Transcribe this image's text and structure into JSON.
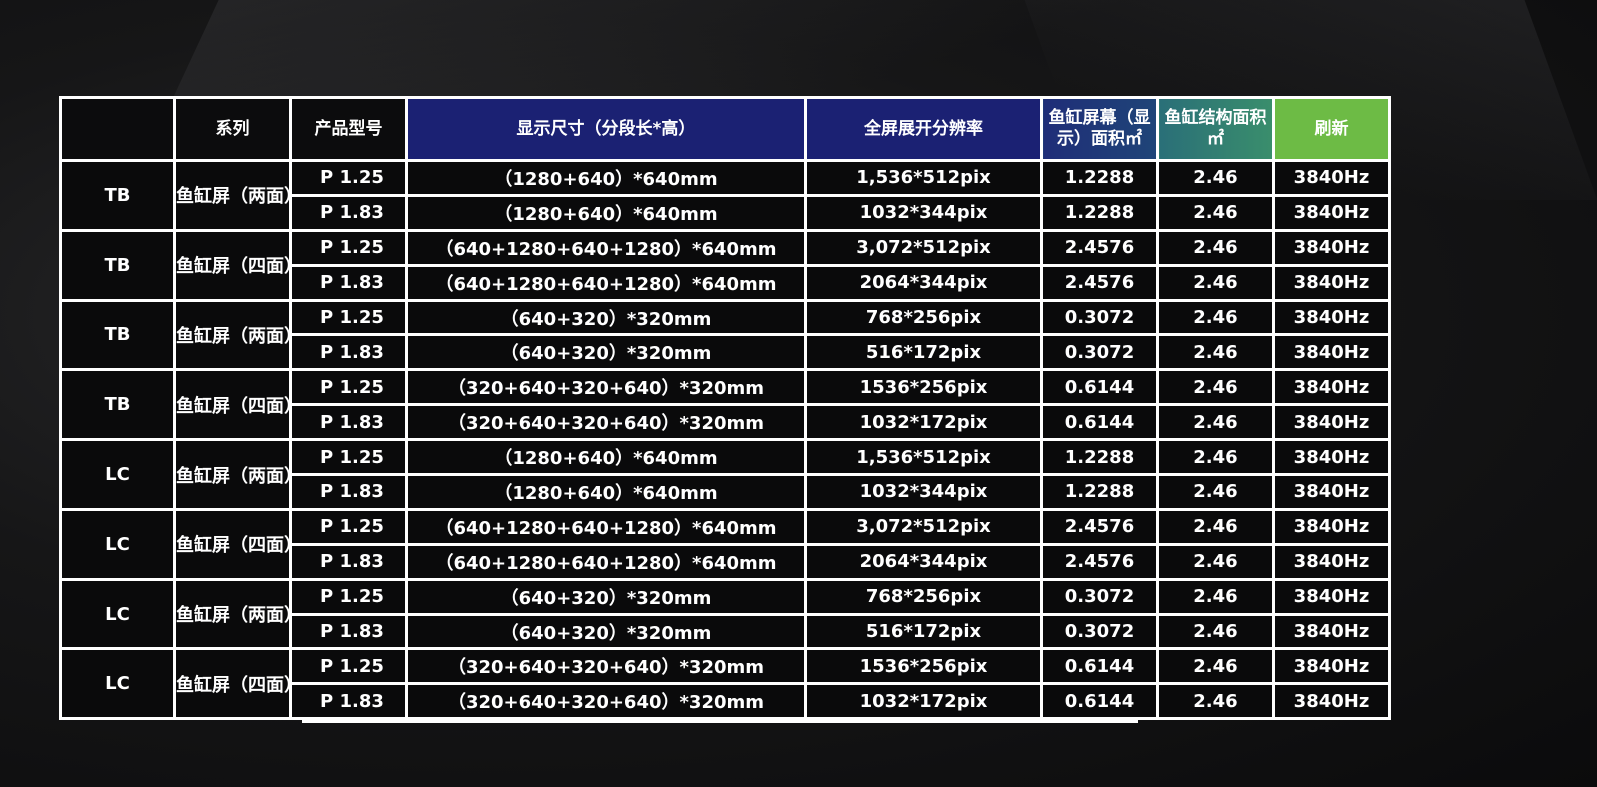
{
  "table": {
    "headers": {
      "series": "系列",
      "model": "产品型号",
      "size": "显示尺寸（分段长*高）",
      "resolution": "全屏展开分辨率",
      "screen_area": "鱼缸屏幕（显示）面积㎡",
      "structure_area": "鱼缸结构面积㎡",
      "refresh": "刷新"
    },
    "groups": [
      {
        "code": "TB",
        "series": "鱼缸屏（两面）",
        "rows": [
          {
            "model": "P 1.25",
            "size": "（1280+640）*640mm",
            "resolution": "1,536*512pix",
            "screen_area": "1.2288",
            "structure_area": "2.46",
            "refresh": "3840Hz"
          },
          {
            "model": "P 1.83",
            "size": "（1280+640）*640mm",
            "resolution": "1032*344pix",
            "screen_area": "1.2288",
            "structure_area": "2.46",
            "refresh": "3840Hz"
          }
        ]
      },
      {
        "code": "TB",
        "series": "鱼缸屏（四面）",
        "rows": [
          {
            "model": "P 1.25",
            "size": "（640+1280+640+1280）*640mm",
            "resolution": "3,072*512pix",
            "screen_area": "2.4576",
            "structure_area": "2.46",
            "refresh": "3840Hz"
          },
          {
            "model": "P 1.83",
            "size": "（640+1280+640+1280）*640mm",
            "resolution": "2064*344pix",
            "screen_area": "2.4576",
            "structure_area": "2.46",
            "refresh": "3840Hz"
          }
        ]
      },
      {
        "code": "TB",
        "series": "鱼缸屏（两面）",
        "rows": [
          {
            "model": "P 1.25",
            "size": "（640+320）*320mm",
            "resolution": "768*256pix",
            "screen_area": "0.3072",
            "structure_area": "2.46",
            "refresh": "3840Hz"
          },
          {
            "model": "P 1.83",
            "size": "（640+320）*320mm",
            "resolution": "516*172pix",
            "screen_area": "0.3072",
            "structure_area": "2.46",
            "refresh": "3840Hz"
          }
        ]
      },
      {
        "code": "TB",
        "series": "鱼缸屏（四面）",
        "rows": [
          {
            "model": "P 1.25",
            "size": "（320+640+320+640）*320mm",
            "resolution": "1536*256pix",
            "screen_area": "0.6144",
            "structure_area": "2.46",
            "refresh": "3840Hz"
          },
          {
            "model": "P 1.83",
            "size": "（320+640+320+640）*320mm",
            "resolution": "1032*172pix",
            "screen_area": "0.6144",
            "structure_area": "2.46",
            "refresh": "3840Hz"
          }
        ]
      },
      {
        "code": "LC",
        "series": "鱼缸屏（两面）",
        "rows": [
          {
            "model": "P 1.25",
            "size": "（1280+640）*640mm",
            "resolution": "1,536*512pix",
            "screen_area": "1.2288",
            "structure_area": "2.46",
            "refresh": "3840Hz"
          },
          {
            "model": "P 1.83",
            "size": "（1280+640）*640mm",
            "resolution": "1032*344pix",
            "screen_area": "1.2288",
            "structure_area": "2.46",
            "refresh": "3840Hz"
          }
        ]
      },
      {
        "code": "LC",
        "series": "鱼缸屏（四面）",
        "rows": [
          {
            "model": "P 1.25",
            "size": "（640+1280+640+1280）*640mm",
            "resolution": "3,072*512pix",
            "screen_area": "2.4576",
            "structure_area": "2.46",
            "refresh": "3840Hz"
          },
          {
            "model": "P 1.83",
            "size": "（640+1280+640+1280）*640mm",
            "resolution": "2064*344pix",
            "screen_area": "2.4576",
            "structure_area": "2.46",
            "refresh": "3840Hz"
          }
        ]
      },
      {
        "code": "LC",
        "series": "鱼缸屏（两面）",
        "rows": [
          {
            "model": "P 1.25",
            "size": "（640+320）*320mm",
            "resolution": "768*256pix",
            "screen_area": "0.3072",
            "structure_area": "2.46",
            "refresh": "3840Hz"
          },
          {
            "model": "P 1.83",
            "size": "（640+320）*320mm",
            "resolution": "516*172pix",
            "screen_area": "0.3072",
            "structure_area": "2.46",
            "refresh": "3840Hz"
          }
        ]
      },
      {
        "code": "LC",
        "series": "鱼缸屏（四面）",
        "rows": [
          {
            "model": "P 1.25",
            "size": "（320+640+320+640）*320mm",
            "resolution": "1536*256pix",
            "screen_area": "0.6144",
            "structure_area": "2.46",
            "refresh": "3840Hz"
          },
          {
            "model": "P 1.83",
            "size": "（320+640+320+640）*320mm",
            "resolution": "1032*172pix",
            "screen_area": "0.6144",
            "structure_area": "2.46",
            "refresh": "3840Hz"
          }
        ]
      }
    ]
  },
  "colors": {
    "background": "#111112",
    "grid_line": "#ffffff",
    "header_blue": "#1b2173",
    "header_teal": "#2a6f78",
    "header_green": "#6dbb45",
    "cell_background": "#0a0a0b",
    "text": "#ffffff"
  }
}
